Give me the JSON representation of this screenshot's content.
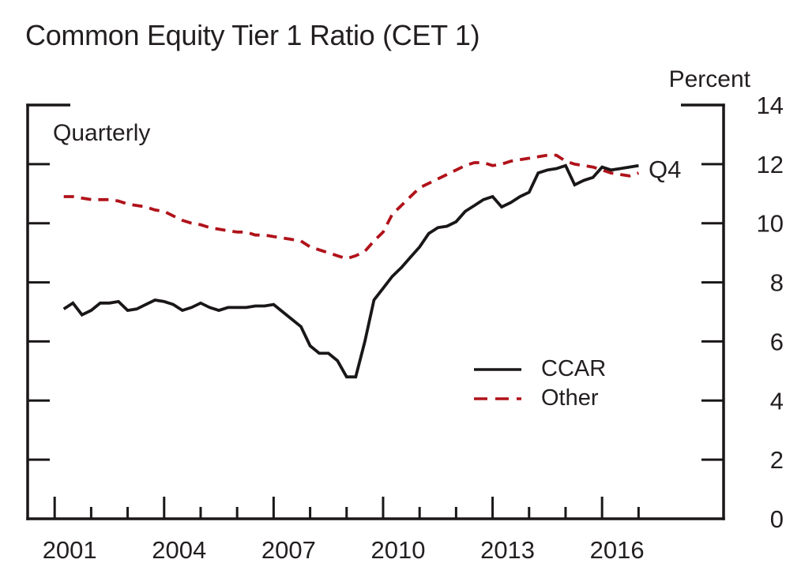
{
  "title": "Common Equity Tier 1 Ratio (CET 1)",
  "frequency_label": "Quarterly",
  "y_axis_unit": "Percent",
  "end_label": "Q4",
  "colors": {
    "axis": "#1a1718",
    "text": "#231f20",
    "ccar": "#1a1718",
    "other": "#b0121a"
  },
  "chart_data": {
    "type": "line",
    "title": "Common Equity Tier 1 Ratio (CET 1)",
    "frequency": "Quarterly",
    "unit": "Percent",
    "last_point_label": "Q4",
    "first_quarter": "2001 Q1",
    "last_quarter": "2016 Q4",
    "x_start": 2001.25,
    "x_step": 0.25,
    "x_range": [
      2000.26,
      2019.33
    ],
    "y_range": [
      0,
      14
    ],
    "y_ticks": [
      0,
      2,
      4,
      6,
      8,
      10,
      12,
      14
    ],
    "x_major_ticks": [
      2001,
      2004,
      2007,
      2010,
      2013,
      2016
    ],
    "x_minor_ticks": [
      2002,
      2003,
      2005,
      2006,
      2008,
      2009,
      2011,
      2012,
      2014,
      2015,
      2017
    ],
    "grid": false,
    "legend_position": "inside-lower-right",
    "series": [
      {
        "name": "CCAR",
        "style": "solid",
        "color": "#1a1718",
        "values": [
          7.1,
          7.3,
          6.9,
          7.05,
          7.3,
          7.3,
          7.35,
          7.05,
          7.1,
          7.25,
          7.4,
          7.35,
          7.25,
          7.05,
          7.15,
          7.3,
          7.15,
          7.05,
          7.15,
          7.15,
          7.15,
          7.2,
          7.2,
          7.25,
          7.0,
          6.75,
          6.5,
          5.85,
          5.6,
          5.6,
          5.35,
          4.8,
          4.8,
          6.0,
          7.4,
          7.8,
          8.2,
          8.5,
          8.85,
          9.2,
          9.65,
          9.85,
          9.9,
          10.05,
          10.4,
          10.6,
          10.8,
          10.9,
          10.55,
          10.7,
          10.9,
          11.05,
          11.7,
          11.8,
          11.85,
          11.95,
          11.3,
          11.45,
          11.55,
          11.9,
          11.8,
          11.85,
          11.9,
          11.95
        ]
      },
      {
        "name": "Other",
        "style": "dashed",
        "color": "#b0121a",
        "values": [
          10.9,
          10.9,
          10.85,
          10.8,
          10.8,
          10.8,
          10.75,
          10.65,
          10.6,
          10.55,
          10.45,
          10.4,
          10.25,
          10.1,
          10.0,
          9.95,
          9.85,
          9.8,
          9.75,
          9.7,
          9.7,
          9.6,
          9.6,
          9.55,
          9.5,
          9.45,
          9.4,
          9.2,
          9.1,
          9.0,
          8.9,
          8.8,
          8.9,
          9.05,
          9.4,
          9.7,
          10.3,
          10.6,
          10.9,
          11.2,
          11.35,
          11.5,
          11.65,
          11.8,
          11.95,
          12.05,
          12.05,
          11.95,
          12.0,
          12.1,
          12.15,
          12.2,
          12.25,
          12.3,
          12.3,
          12.1,
          12.0,
          11.95,
          11.9,
          11.8,
          11.7,
          11.65,
          11.6,
          11.7
        ]
      }
    ]
  }
}
